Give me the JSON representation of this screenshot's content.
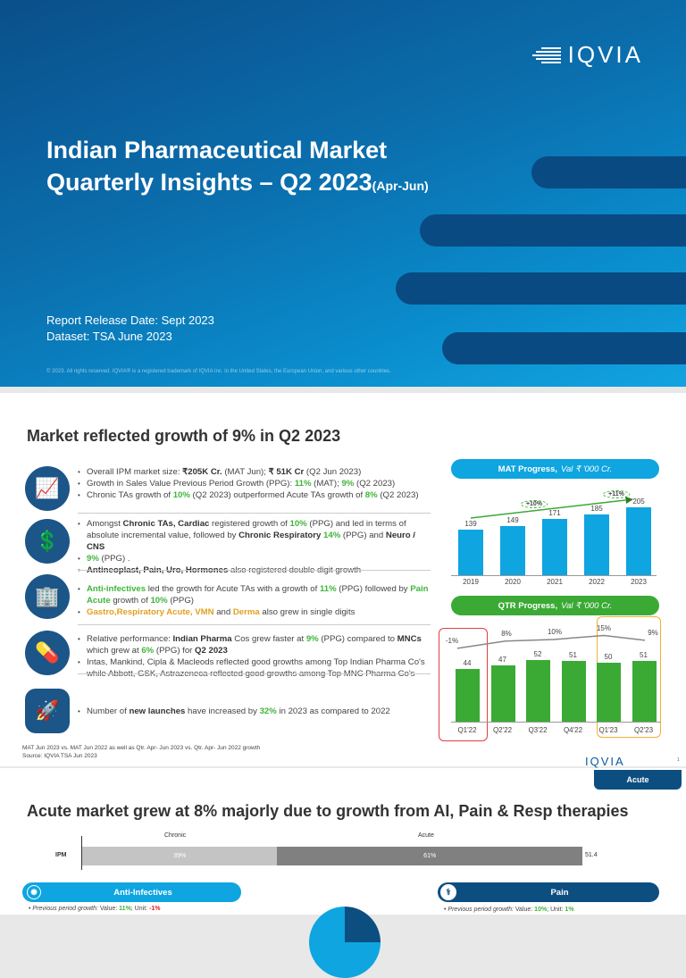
{
  "cover": {
    "logo": "IQVIA",
    "title_line1": "Indian Pharmaceutical Market",
    "title_line2": "Quarterly Insights – Q2 2023",
    "title_suffix": "(Apr-Jun)",
    "release": "Report Release Date: Sept 2023",
    "dataset": "Dataset: TSA June 2023",
    "copyright": "© 2023. All rights reserved. IQVIA® is a registered trademark of IQVIA Inc. in the United States, the European Union, and various other countries."
  },
  "page2": {
    "title": "Market reflected growth of 9% in Q2 2023",
    "icons": [
      "growth-chart-icon",
      "money-people-icon",
      "building-icon",
      "medicine-icon",
      "rocket-icon"
    ],
    "footnote1": "MAT Jun 2023 vs. MAT Jun 2022 as well as Qtr. Apr- Jun 2023 vs. Qtr. Apr- Jun 2022 growth",
    "footnote2": "Source: IQVIA TSA Jun 2023",
    "logo": "IQVIA",
    "page_number": "1"
  },
  "chart_data": [
    {
      "type": "bar",
      "title": "MAT Progress,",
      "subtitle": "Val ₹ '000 Cr.",
      "categories": [
        "2019",
        "2020",
        "2021",
        "2022",
        "2023"
      ],
      "values": [
        139,
        149,
        171,
        185,
        205
      ],
      "annotations": [
        "+10%",
        "+11%"
      ],
      "color": "#0ea5e0"
    },
    {
      "type": "bar",
      "title": "QTR Progress,",
      "subtitle": "Val ₹ '000 Cr.",
      "categories": [
        "Q1'22",
        "Q2'22",
        "Q3'22",
        "Q4'22",
        "Q1'23",
        "Q2'23"
      ],
      "values": [
        44,
        47,
        52,
        51,
        50,
        51
      ],
      "growth_labels": [
        "-1%",
        "8%",
        "10%",
        "15%",
        "9%"
      ],
      "growth": [
        -1,
        8,
        10,
        15,
        9
      ],
      "color": "#3aaa35"
    },
    {
      "type": "bar",
      "stacked": true,
      "categories": [
        "IPM"
      ],
      "series": [
        {
          "name": "Chronic",
          "values": [
            39
          ]
        },
        {
          "name": "Acute",
          "values": [
            61
          ]
        }
      ],
      "total_label": "51.4",
      "value_labels": [
        "39%",
        "61%"
      ]
    }
  ],
  "page3": {
    "tab": "Acute",
    "title": "Acute market grew at 8% majorly due to growth from AI, Pain & Resp therapies",
    "ai_pill": "Anti-Infectives",
    "pain_pill": "Pain",
    "ai_ppg_label": "Previous period growth:",
    "ai_ppg_val": " Value: ",
    "ai_v": "11%",
    "ai_u_label": "; Unit: ",
    "ai_u": "-1%",
    "pain_ppg_label": "Previous period growth:",
    "pain_v": "10%",
    "pain_u": "1%"
  }
}
